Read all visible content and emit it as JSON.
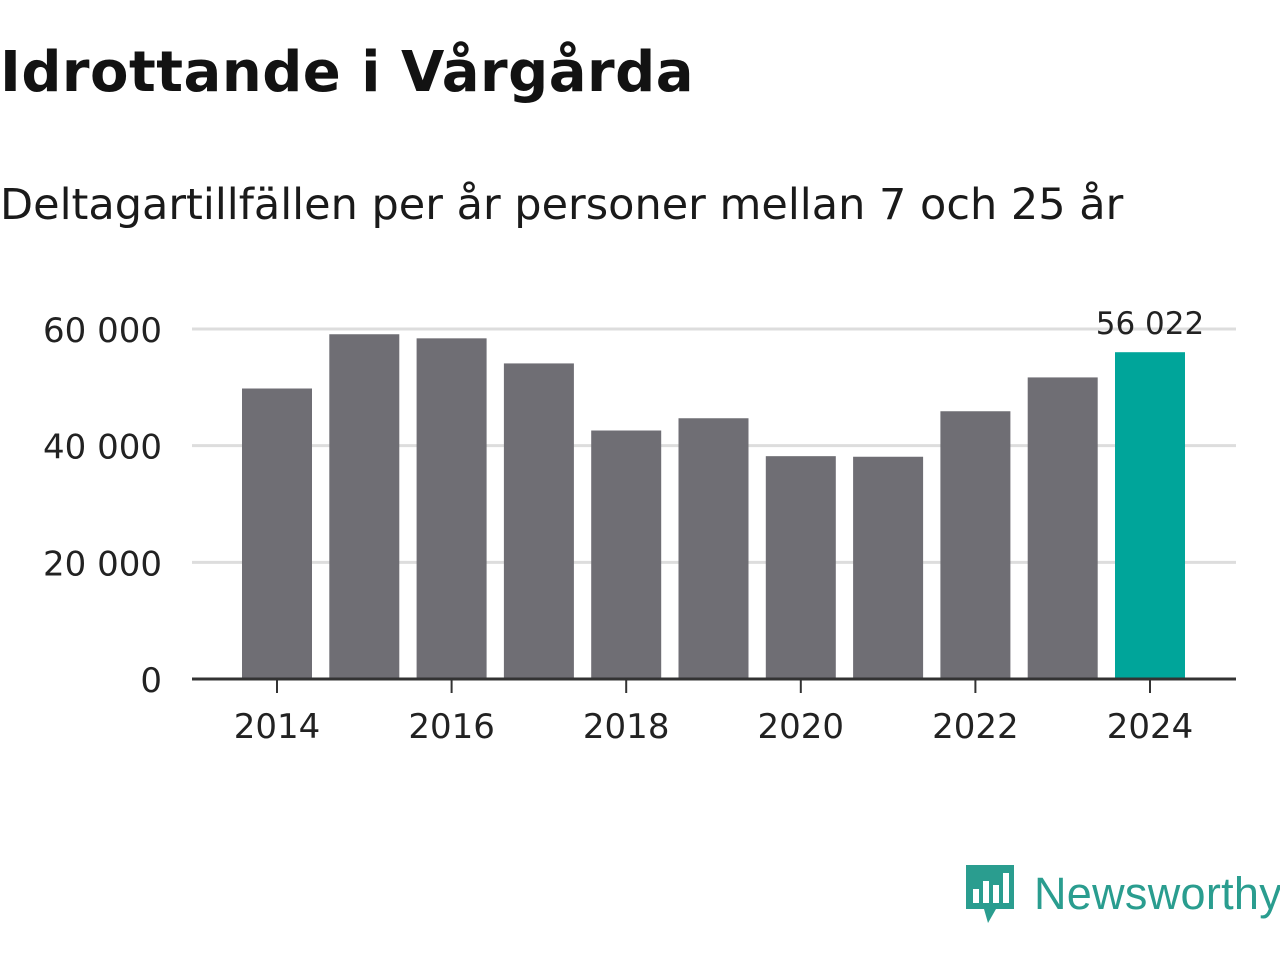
{
  "title": "Idrottande i Vårgårda",
  "subtitle": "Deltagartillfällen per år personer mellan 7 och 25 år",
  "brand": {
    "name": "Newsworthy",
    "icon": "newsworthy-logo-icon",
    "color": "#2a9d8f"
  },
  "colors": {
    "bar": "#6f6e74",
    "highlight": "#00a59a",
    "grid": "#dddddd",
    "axis": "#333333",
    "text": "#222222"
  },
  "chart_data": {
    "type": "bar",
    "title": "Idrottande i Vårgårda",
    "subtitle": "Deltagartillfällen per år personer mellan 7 och 25 år",
    "xlabel": "",
    "ylabel": "",
    "categories": [
      2014,
      2015,
      2016,
      2017,
      2018,
      2019,
      2020,
      2021,
      2022,
      2023,
      2024
    ],
    "values": [
      49800,
      59100,
      58400,
      54100,
      42600,
      44700,
      38200,
      38100,
      45900,
      51700,
      56022
    ],
    "highlight_index": 10,
    "highlight_label": "56 022",
    "x_ticks": [
      2014,
      2016,
      2018,
      2020,
      2022,
      2024
    ],
    "x_tick_labels": [
      "2014",
      "2016",
      "2018",
      "2020",
      "2022",
      "2024"
    ],
    "y_ticks": [
      0,
      20000,
      40000,
      60000
    ],
    "y_tick_labels": [
      "0",
      "20 000",
      "40 000",
      "60 000"
    ],
    "ylim": [
      0,
      60000
    ],
    "grid": true
  }
}
